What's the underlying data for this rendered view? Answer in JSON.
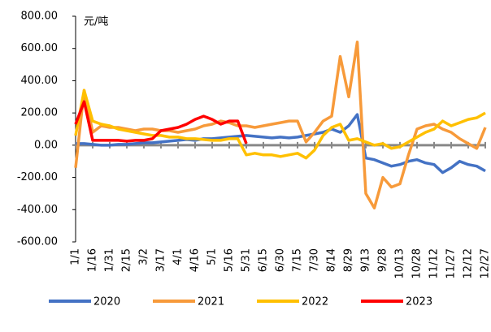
{
  "chart_data": {
    "type": "line",
    "y_unit": "元/吨",
    "categories": [
      "1/1",
      null,
      "1/16",
      null,
      "1/31",
      null,
      "2/15",
      null,
      "3/2",
      null,
      "3/17",
      null,
      "4/1",
      null,
      "4/16",
      null,
      "5/1",
      null,
      "5/16",
      null,
      "5/31",
      null,
      "6/15",
      null,
      "6/30",
      null,
      "7/15",
      null,
      "7/30",
      null,
      "8/14",
      null,
      "8/29",
      null,
      "9/13",
      null,
      "9/28",
      null,
      "10/13",
      null,
      "10/28",
      null,
      "11/12",
      null,
      "11/27",
      null,
      "12/12",
      null,
      "12/27"
    ],
    "series": [
      {
        "name": "2020",
        "color": "#4472c4",
        "values": [
          10,
          10,
          5,
          0,
          0,
          5,
          5,
          10,
          15,
          15,
          20,
          25,
          30,
          35,
          30,
          40,
          40,
          45,
          50,
          55,
          60,
          55,
          50,
          45,
          50,
          45,
          50,
          60,
          70,
          80,
          100,
          80,
          120,
          190,
          -80,
          -90,
          -110,
          -130,
          -120,
          -100,
          -90,
          -110,
          -120,
          -170,
          -140,
          -100,
          -120,
          -130,
          -160
        ]
      },
      {
        "name": "2021",
        "color": "#f79a3a",
        "values": [
          -140,
          340,
          80,
          120,
          110,
          110,
          100,
          90,
          100,
          100,
          90,
          90,
          80,
          90,
          100,
          120,
          130,
          150,
          140,
          120,
          120,
          110,
          120,
          130,
          140,
          150,
          150,
          20,
          80,
          150,
          180,
          550,
          300,
          640,
          -300,
          -390,
          -200,
          -260,
          -240,
          -60,
          100,
          120,
          130,
          100,
          80,
          40,
          10,
          -20,
          110
        ]
      },
      {
        "name": "2022",
        "color": "#ffc000",
        "values": [
          60,
          340,
          150,
          130,
          120,
          100,
          90,
          80,
          70,
          60,
          60,
          50,
          50,
          40,
          40,
          35,
          30,
          30,
          40,
          40,
          -60,
          -50,
          -60,
          -60,
          -70,
          -60,
          -50,
          -80,
          -30,
          60,
          110,
          130,
          30,
          40,
          20,
          0,
          10,
          -20,
          -10,
          20,
          50,
          80,
          100,
          150,
          120,
          140,
          160,
          170,
          200
        ]
      },
      {
        "name": "2023",
        "color": "#ff0000",
        "values": [
          130,
          270,
          30,
          30,
          30,
          30,
          25,
          30,
          30,
          40,
          90,
          100,
          110,
          130,
          160,
          180,
          160,
          130,
          150,
          150,
          10,
          null,
          null,
          null,
          null,
          null,
          null,
          null,
          null,
          null,
          null,
          null,
          null,
          null,
          null,
          null,
          null,
          null,
          null,
          null,
          null,
          null,
          null,
          null,
          null,
          null,
          null,
          null,
          null
        ]
      }
    ],
    "ylim": [
      -600,
      800
    ],
    "yticks": [
      {
        "value": -600,
        "label": "-600.00"
      },
      {
        "value": -400,
        "label": "-400.00"
      },
      {
        "value": -200,
        "label": "-200.00"
      },
      {
        "value": 0,
        "label": "0.00"
      },
      {
        "value": 200,
        "label": "200.00"
      },
      {
        "value": 400,
        "label": "400.00"
      },
      {
        "value": 600,
        "label": "600.00"
      },
      {
        "value": 800,
        "label": "800.00"
      }
    ],
    "legend": "bottom"
  }
}
